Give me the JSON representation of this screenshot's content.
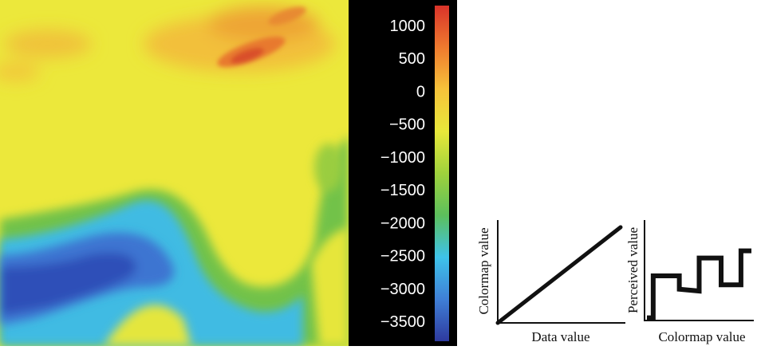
{
  "chart_data": [
    {
      "type": "heatmap",
      "title": "",
      "colorbar": {
        "ticks": [
          1000,
          500,
          0,
          -500,
          -1000,
          -1500,
          -2000,
          -2500,
          -3000,
          -3500
        ],
        "tick_labels": [
          "1000",
          "500",
          "0",
          "−500",
          "−1000",
          "−1500",
          "−2000",
          "−2500",
          "−3000",
          "−3500"
        ],
        "range": [
          -3800,
          1300
        ],
        "colors": [
          "#2e3a9e",
          "#3f7fd6",
          "#3ec3ea",
          "#5cbf5c",
          "#9fd23c",
          "#e8e83a",
          "#f6c33a",
          "#ef7a2e",
          "#d9332a"
        ]
      }
    },
    {
      "type": "line",
      "xlabel": "Data value",
      "ylabel": "Colormap value",
      "x": [
        0,
        1
      ],
      "y": [
        0,
        1
      ]
    },
    {
      "type": "line",
      "xlabel": "Colormap value",
      "ylabel": "Perceived value",
      "x": [
        0.0,
        0.06,
        0.06,
        0.31,
        0.31,
        0.5,
        0.5,
        0.71,
        0.71,
        0.9,
        0.9,
        1.0
      ],
      "y": [
        0.03,
        0.03,
        0.5,
        0.5,
        0.35,
        0.33,
        0.7,
        0.7,
        0.4,
        0.4,
        0.78,
        0.78
      ]
    }
  ]
}
